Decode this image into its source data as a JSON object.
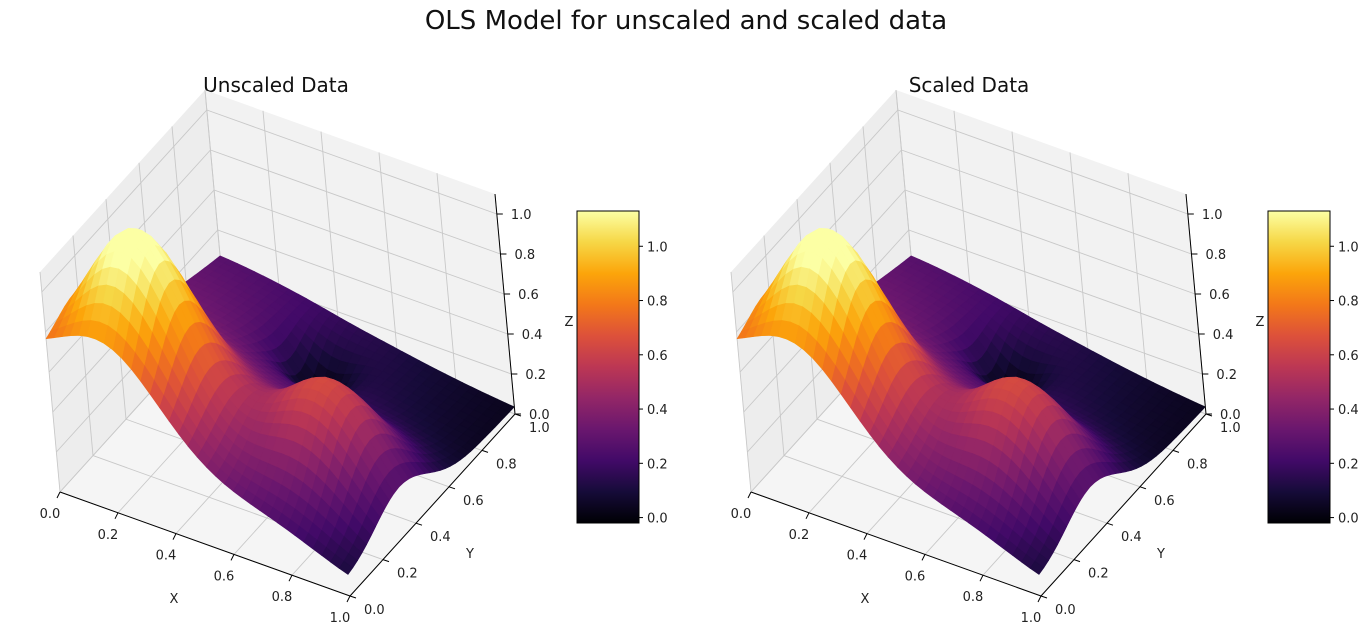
{
  "figure_title": "OLS Model for unscaled and scaled data",
  "colormap": "inferno",
  "colors": {
    "pane_fill": "#f2f2f2",
    "grid": "#c8c8c8",
    "axis_line": "#000000"
  },
  "chart_data": [
    {
      "type": "surface",
      "title": "Unscaled Data",
      "xlabel": "X",
      "ylabel": "Y",
      "zlabel": "Z",
      "xlim": [
        0,
        1
      ],
      "ylim": [
        0,
        1
      ],
      "zlim": [
        0,
        1.1
      ],
      "xticks": [
        "0.0",
        "0.2",
        "0.4",
        "0.6",
        "0.8",
        "1.0"
      ],
      "yticks": [
        "0.0",
        "0.2",
        "0.4",
        "0.6",
        "0.8",
        "1.0"
      ],
      "zticks": [
        "0.0",
        "0.2",
        "0.4",
        "0.6",
        "0.8",
        "1.0"
      ],
      "colorbar": {
        "range": [
          -0.02,
          1.13
        ],
        "ticks": [
          "0.0",
          "0.2",
          "0.4",
          "0.6",
          "0.8",
          "1.0"
        ]
      },
      "surface_description": "OLS fit of the Franke function on a unit grid",
      "grid": "on"
    },
    {
      "type": "surface",
      "title": "Scaled Data",
      "xlabel": "X",
      "ylabel": "Y",
      "zlabel": "Z",
      "xlim": [
        0,
        1
      ],
      "ylim": [
        0,
        1
      ],
      "zlim": [
        0,
        1.1
      ],
      "xticks": [
        "0.0",
        "0.2",
        "0.4",
        "0.6",
        "0.8",
        "1.0"
      ],
      "yticks": [
        "0.0",
        "0.2",
        "0.4",
        "0.6",
        "0.8",
        "1.0"
      ],
      "zticks": [
        "0.0",
        "0.2",
        "0.4",
        "0.6",
        "0.8",
        "1.0"
      ],
      "colorbar": {
        "range": [
          -0.02,
          1.13
        ],
        "ticks": [
          "0.0",
          "0.2",
          "0.4",
          "0.6",
          "0.8",
          "1.0"
        ]
      },
      "surface_description": "OLS fit of the Franke function on a unit grid",
      "grid": "on"
    }
  ]
}
